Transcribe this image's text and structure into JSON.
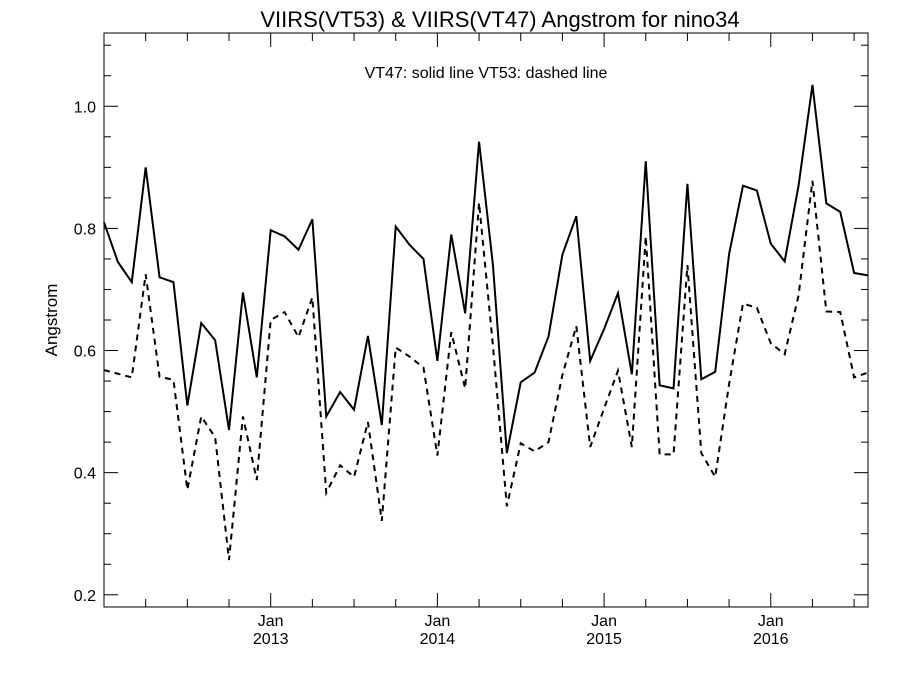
{
  "chart_data": {
    "type": "line",
    "title": "VIIRS(VT53) & VIIRS(VT47)  Angstrom for nino34",
    "annotation": "VT47: solid line   VT53: dashed line",
    "ylabel": "Angstrom",
    "xlabel": "",
    "ylim": [
      0.18,
      1.12
    ],
    "y_ticks": [
      0.2,
      0.4,
      0.6,
      0.8,
      1.0
    ],
    "y_tick_labels": [
      "0.2",
      "0.4",
      "0.6",
      "0.8",
      "1.0"
    ],
    "x_range": [
      "2012-01",
      "2016-08"
    ],
    "x_ticks": [
      {
        "date": "2013-01",
        "month": "Jan",
        "year": "2013"
      },
      {
        "date": "2014-01",
        "month": "Jan",
        "year": "2014"
      },
      {
        "date": "2015-01",
        "month": "Jan",
        "year": "2015"
      },
      {
        "date": "2016-01",
        "month": "Jan",
        "year": "2016"
      }
    ],
    "x": [
      "2012-01",
      "2012-02",
      "2012-03",
      "2012-04",
      "2012-05",
      "2012-06",
      "2012-07",
      "2012-08",
      "2012-09",
      "2012-10",
      "2012-11",
      "2012-12",
      "2013-01",
      "2013-02",
      "2013-03",
      "2013-04",
      "2013-05",
      "2013-06",
      "2013-07",
      "2013-08",
      "2013-09",
      "2013-10",
      "2013-11",
      "2013-12",
      "2014-01",
      "2014-02",
      "2014-03",
      "2014-04",
      "2014-05",
      "2014-06",
      "2014-07",
      "2014-08",
      "2014-09",
      "2014-10",
      "2014-11",
      "2014-12",
      "2015-01",
      "2015-02",
      "2015-03",
      "2015-04",
      "2015-05",
      "2015-06",
      "2015-07",
      "2015-08",
      "2015-09",
      "2015-10",
      "2015-11",
      "2015-12",
      "2016-01",
      "2016-02",
      "2016-03",
      "2016-04",
      "2016-05",
      "2016-06",
      "2016-07",
      "2016-08"
    ],
    "series": [
      {
        "name": "VT47",
        "style": "solid",
        "values": [
          0.81,
          0.745,
          0.712,
          0.9,
          0.72,
          0.712,
          0.51,
          0.645,
          0.617,
          0.47,
          0.695,
          0.556,
          0.797,
          0.787,
          0.765,
          0.815,
          0.492,
          0.532,
          0.503,
          0.624,
          0.478,
          0.803,
          0.773,
          0.75,
          0.583,
          0.79,
          0.661,
          0.942,
          0.74,
          0.432,
          0.548,
          0.564,
          0.623,
          0.757,
          0.82,
          0.583,
          0.635,
          0.694,
          0.561,
          0.91,
          0.543,
          0.538,
          0.873,
          0.553,
          0.565,
          0.758,
          0.87,
          0.862,
          0.775,
          0.746,
          0.87,
          1.035,
          0.841,
          0.827,
          0.727,
          0.723
        ]
      },
      {
        "name": "VT53",
        "style": "dashed",
        "values": [
          0.568,
          0.562,
          0.556,
          0.725,
          0.557,
          0.552,
          0.372,
          0.492,
          0.458,
          0.257,
          0.492,
          0.388,
          0.65,
          0.663,
          0.622,
          0.687,
          0.367,
          0.412,
          0.393,
          0.483,
          0.321,
          0.605,
          0.59,
          0.572,
          0.428,
          0.63,
          0.538,
          0.842,
          0.608,
          0.345,
          0.448,
          0.435,
          0.45,
          0.56,
          0.64,
          0.442,
          0.505,
          0.567,
          0.442,
          0.787,
          0.43,
          0.43,
          0.74,
          0.432,
          0.393,
          0.545,
          0.677,
          0.67,
          0.612,
          0.594,
          0.69,
          0.878,
          0.664,
          0.663,
          0.556,
          0.564
        ]
      }
    ],
    "grid": false,
    "legend": "annotation-top-center"
  }
}
